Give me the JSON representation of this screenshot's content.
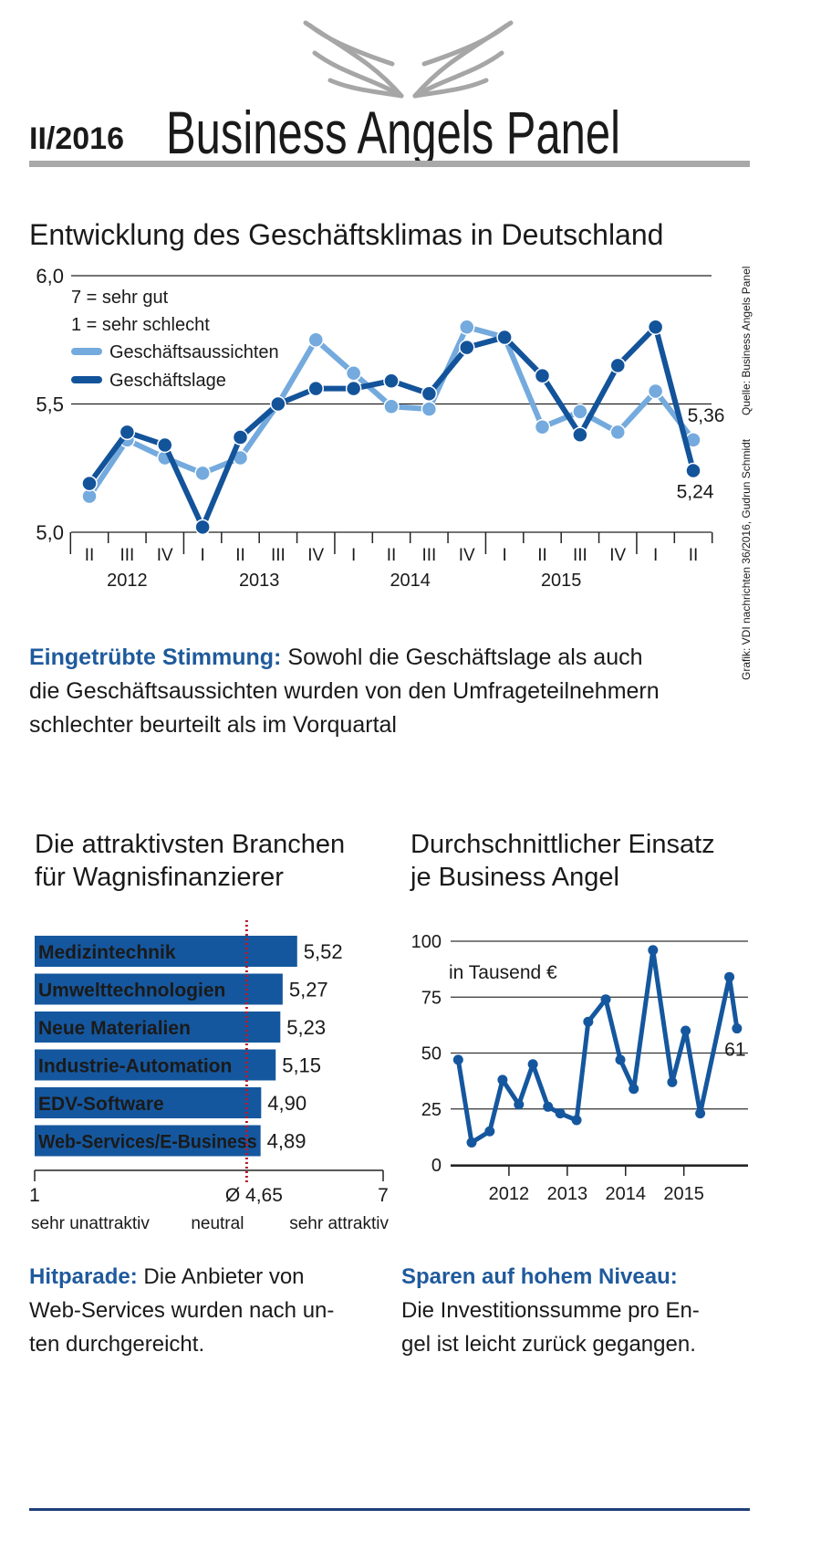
{
  "header": {
    "issue": "II/2016",
    "brand": "Business Angels Panel"
  },
  "source": "Quelle: Business Angels Panel",
  "credit": "Grafik: VDI nachrichten 36/2016, Gudrun Schmidt",
  "chart_data": [
    {
      "type": "line",
      "title": [
        "Entwicklung des Geschäftsklimas in Deutschland"
      ],
      "notes": [
        "7 = sehr gut",
        "1 = sehr schlecht"
      ],
      "category_groups": [
        {
          "label": "2012",
          "categories": [
            "II",
            "III",
            "IV"
          ]
        },
        {
          "label": "2013",
          "categories": [
            "I",
            "II",
            "III",
            "IV"
          ]
        },
        {
          "label": "2014",
          "categories": [
            "I",
            "II",
            "III",
            "IV"
          ]
        },
        {
          "label": "2015",
          "categories": [
            "I",
            "II",
            "III",
            "IV"
          ]
        },
        {
          "label": null,
          "categories": [
            "I",
            "II"
          ]
        }
      ],
      "series": [
        {
          "name": "Geschäftsaussichten",
          "color": "#74aadd",
          "values": [
            5.14,
            5.36,
            5.29,
            5.23,
            5.29,
            5.5,
            5.75,
            5.62,
            5.49,
            5.48,
            5.8,
            5.76,
            5.41,
            5.47,
            5.39,
            5.55,
            5.36
          ],
          "value_labels": [
            null,
            null,
            null,
            null,
            null,
            null,
            null,
            null,
            null,
            null,
            null,
            null,
            null,
            null,
            null,
            null,
            "5,36"
          ]
        },
        {
          "name": "Geschäftslage",
          "color": "#13539a",
          "values": [
            5.19,
            5.39,
            5.34,
            5.02,
            5.37,
            5.5,
            5.56,
            5.56,
            5.59,
            5.54,
            5.72,
            5.76,
            5.61,
            5.38,
            5.65,
            5.8,
            5.24
          ],
          "value_labels": [
            null,
            null,
            null,
            null,
            null,
            null,
            null,
            null,
            null,
            null,
            null,
            null,
            null,
            null,
            null,
            null,
            "5,24"
          ]
        }
      ],
      "ylim": [
        5,
        6
      ],
      "yticks": [
        {
          "value": 5,
          "label": "5,0"
        },
        {
          "value": 5.5,
          "label": "5,5"
        },
        {
          "value": 6,
          "label": "6,0"
        }
      ],
      "grid": true,
      "caption": {
        "lead": "Eingetrübte Stimmung:",
        "lines": [
          "Sowohl die Geschäftslage als auch",
          "die Geschäftsaussichten wurden von den Umfrageteilnehmern",
          "schlechter beurteilt als im Vorquartal"
        ],
        "lead_break": false
      }
    },
    {
      "type": "hbar",
      "title": [
        "Die attraktivsten Branchen",
        "für Wagnisfinanzierer"
      ],
      "categories": [
        "Medizintechnik",
        "Umwelttechnologien",
        "Neue Materialien",
        "Industrie-Automation",
        "EDV-Software",
        "Web-Services/E-Business"
      ],
      "values": [
        5.52,
        5.27,
        5.23,
        5.15,
        4.9,
        4.89
      ],
      "value_labels": [
        "5,52",
        "5,27",
        "5,23",
        "5,15",
        "4,90",
        "4,89"
      ],
      "color": "#15579e",
      "xlim": [
        1,
        7
      ],
      "xticks": [
        1,
        7
      ],
      "reference": {
        "value": 4.65,
        "label": "Ø 4,65",
        "color": "#b8192c"
      },
      "axis_labels": [
        "sehr unattraktiv",
        "neutral",
        "sehr attraktiv"
      ],
      "caption": {
        "lead": "Hitparade:",
        "lines": [
          "Die Anbieter von",
          "Web-Services wurden nach un-",
          "ten durchgereicht."
        ],
        "lead_break": false
      }
    },
    {
      "type": "line",
      "title": [
        "Durchschnittlicher Einsatz",
        "je Business Angel"
      ],
      "note": "in Tausend €",
      "x": [
        2011.63,
        2011.86,
        2012.17,
        2012.39,
        2012.67,
        2012.91,
        2013.17,
        2013.38,
        2013.66,
        2013.86,
        2014.16,
        2014.41,
        2014.64,
        2014.97,
        2015.3,
        2015.53,
        2015.78,
        2016.28,
        2016.41
      ],
      "series": [
        {
          "color": "#15579e",
          "values": [
            47,
            10,
            15,
            38,
            27,
            45,
            26,
            23,
            20,
            64,
            74,
            47,
            34,
            96,
            37,
            60,
            23,
            84,
            61
          ],
          "value_labels": [
            null,
            null,
            null,
            null,
            null,
            null,
            null,
            null,
            null,
            null,
            null,
            null,
            null,
            null,
            null,
            null,
            null,
            null,
            "61"
          ]
        }
      ],
      "xlim": [
        2011.5,
        2016.6
      ],
      "xticks": [
        {
          "value": 2012.5,
          "label": "2012"
        },
        {
          "value": 2013.5,
          "label": "2013"
        },
        {
          "value": 2014.5,
          "label": "2014"
        },
        {
          "value": 2015.5,
          "label": "2015"
        }
      ],
      "ylim": [
        0,
        100
      ],
      "yticks": [
        0,
        25,
        50,
        75,
        100
      ],
      "grid": true,
      "caption": {
        "lead": "Sparen auf hohem Niveau:",
        "lines": [
          "Die Investitionssumme pro En-",
          "gel ist leicht zurück gegangen."
        ],
        "lead_break": true
      }
    }
  ]
}
